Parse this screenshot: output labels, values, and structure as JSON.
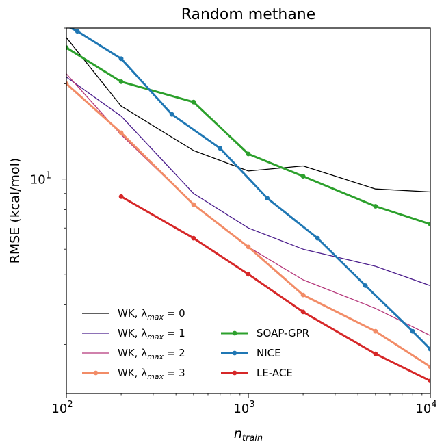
{
  "chart_data": {
    "type": "line",
    "title": "Random methane",
    "xlabel": "n_train",
    "ylabel": "RMSE (kcal/mol)",
    "xscale": "log",
    "yscale": "log",
    "xlim": [
      100,
      10000
    ],
    "ylim": [
      2.1,
      30
    ],
    "xticks": [
      {
        "value": 100,
        "base": "10",
        "exp": "2"
      },
      {
        "value": 1000,
        "base": "10",
        "exp": "3"
      },
      {
        "value": 10000,
        "base": "10",
        "exp": "4"
      }
    ],
    "yticks": [
      {
        "value": 10,
        "base": "10",
        "exp": "1"
      }
    ],
    "legend_position": "lower-left (two columns)",
    "grid": false,
    "series": [
      {
        "name": "WK, λmax = 0",
        "legend_main": "WK, λ",
        "legend_sub": "max",
        "legend_tail": " = 0",
        "color": "#000000",
        "width": 1.3,
        "markers": false,
        "x": [
          100,
          200,
          500,
          1000,
          2000,
          5000,
          10000
        ],
        "y": [
          28.0,
          17.0,
          12.3,
          10.6,
          11.0,
          9.3,
          9.1
        ]
      },
      {
        "name": "WK, λmax = 1",
        "legend_main": "WK, λ",
        "legend_sub": "max",
        "legend_tail": " = 1",
        "color": "#4b1d8c",
        "width": 1.3,
        "markers": false,
        "x": [
          100,
          200,
          500,
          1000,
          2000,
          5000,
          10000
        ],
        "y": [
          21.0,
          15.8,
          9.0,
          7.0,
          6.0,
          5.3,
          4.6
        ]
      },
      {
        "name": "WK, λmax = 2",
        "legend_main": "WK, λ",
        "legend_sub": "max",
        "legend_tail": " = 2",
        "color": "#b5367a",
        "width": 1.3,
        "markers": false,
        "x": [
          100,
          200,
          500,
          1000,
          2000,
          5000,
          10000
        ],
        "y": [
          21.5,
          13.8,
          8.3,
          6.1,
          4.8,
          3.9,
          3.2
        ]
      },
      {
        "name": "WK, λmax = 3",
        "legend_main": "WK, λ",
        "legend_sub": "max",
        "legend_tail": " = 3",
        "color": "#f28c67",
        "width": 3,
        "markers": true,
        "x": [
          100,
          200,
          500,
          1000,
          2000,
          5000,
          10000
        ],
        "y": [
          20.0,
          14.0,
          8.3,
          6.1,
          4.3,
          3.3,
          2.55
        ]
      },
      {
        "name": "SOAP-GPR",
        "color": "#2ca02c",
        "width": 3,
        "markers": true,
        "x": [
          100,
          200,
          500,
          1000,
          2000,
          5000,
          10000
        ],
        "y": [
          26.0,
          20.3,
          17.5,
          12.0,
          10.2,
          8.2,
          7.2
        ]
      },
      {
        "name": "NICE",
        "color": "#1f77b4",
        "width": 3,
        "markers": true,
        "x": [
          100,
          115,
          200,
          380,
          700,
          1270,
          2400,
          4400,
          8000,
          10000
        ],
        "y": [
          30.5,
          29.3,
          24.0,
          16.0,
          12.5,
          8.7,
          6.5,
          4.6,
          3.3,
          2.9
        ]
      },
      {
        "name": "LE-ACE",
        "color": "#d62728",
        "width": 3,
        "markers": true,
        "x": [
          200,
          500,
          1000,
          2000,
          5000,
          10000
        ],
        "y": [
          8.8,
          6.5,
          5.0,
          3.8,
          2.8,
          2.3
        ]
      }
    ]
  }
}
